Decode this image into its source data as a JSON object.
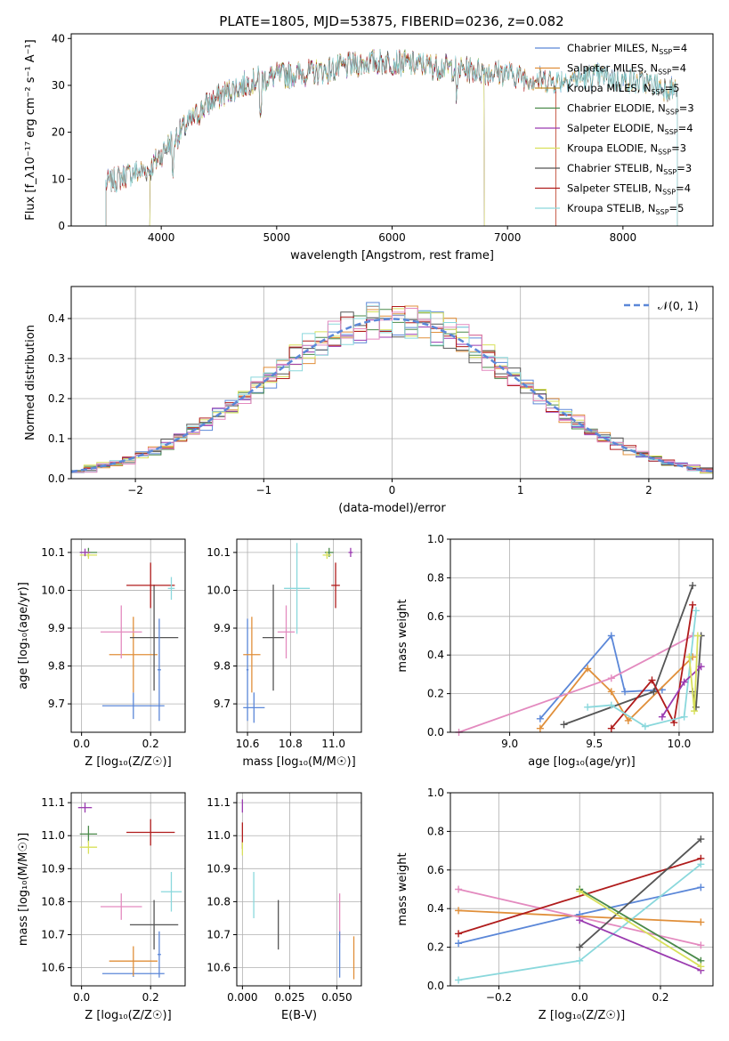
{
  "figure_title": "PLATE=1805, MJD=53875, FIBERID=0236, z=0.082",
  "colors": {
    "Chabrier MILES": "#5b87d8",
    "Salpeter MILES": "#e08f3a",
    "Kroupa MILES": "#c28f2c",
    "Chabrier ELODIE": "#4a8a4a",
    "Salpeter ELODIE": "#9a3bb0",
    "Kroupa ELODIE": "#d8e05a",
    "Chabrier STELIB": "#555555",
    "Salpeter STELIB": "#b01c1c",
    "Kroupa STELIB": "#8ad8dc",
    "pink": "#e38abf",
    "normal": "#5b87d8"
  },
  "chart_data": [
    {
      "type": "line",
      "id": "spectrum",
      "title": "PLATE=1805, MJD=53875, FIBERID=0236, z=0.082",
      "xlabel": "wavelength [Angstrom, rest frame]",
      "ylabel": "Flux [f_λ10⁻¹⁷ erg cm⁻² s⁻¹ A⁻¹]",
      "xlim": [
        3220,
        8780
      ],
      "ylim": [
        0,
        41
      ],
      "xticks": [
        "4000",
        "5000",
        "6000",
        "7000",
        "8000"
      ],
      "yticks": [
        "0",
        "10",
        "20",
        "30",
        "40"
      ],
      "legend_position": "top-right",
      "continuum": [
        [
          3520,
          9
        ],
        [
          3700,
          11
        ],
        [
          3900,
          12
        ],
        [
          4050,
          17
        ],
        [
          4200,
          21
        ],
        [
          4400,
          26
        ],
        [
          4600,
          29
        ],
        [
          4800,
          31
        ],
        [
          5000,
          32
        ],
        [
          5200,
          32.5
        ],
        [
          5400,
          33
        ],
        [
          5600,
          34
        ],
        [
          5800,
          35
        ],
        [
          6000,
          35
        ],
        [
          6200,
          34.5
        ],
        [
          6400,
          34
        ],
        [
          6600,
          33.5
        ],
        [
          6800,
          33
        ],
        [
          7000,
          32.5
        ],
        [
          7200,
          31.5
        ],
        [
          7400,
          31
        ],
        [
          7600,
          31.5
        ],
        [
          7800,
          32
        ],
        [
          8000,
          31
        ],
        [
          8200,
          30.5
        ],
        [
          8470,
          29
        ]
      ],
      "series": [
        {
          "name": "Chabrier MILES, N",
          "sub": "SSP",
          "suffix": "=4",
          "start": 3520,
          "end": 8470
        },
        {
          "name": "Salpeter MILES, N",
          "sub": "SSP",
          "suffix": "=4",
          "start": 3520,
          "end": 7420
        },
        {
          "name": "Kroupa MILES, N",
          "sub": "SSP",
          "suffix": "=5",
          "start": 3520,
          "end": 8470
        },
        {
          "name": "Chabrier ELODIE, N",
          "sub": "SSP",
          "suffix": "=3",
          "start": 3900,
          "end": 6800
        },
        {
          "name": "Salpeter ELODIE, N",
          "sub": "SSP",
          "suffix": "=4",
          "start": 3900,
          "end": 6800
        },
        {
          "name": "Kroupa ELODIE, N",
          "sub": "SSP",
          "suffix": "=3",
          "start": 3900,
          "end": 6800
        },
        {
          "name": "Chabrier STELIB, N",
          "sub": "SSP",
          "suffix": "=3",
          "start": 3520,
          "end": 8470
        },
        {
          "name": "Salpeter STELIB, N",
          "sub": "SSP",
          "suffix": "=4",
          "start": 3520,
          "end": 7420
        },
        {
          "name": "Kroupa STELIB, N",
          "sub": "SSP",
          "suffix": "=5",
          "start": 3520,
          "end": 8470
        }
      ]
    },
    {
      "type": "line",
      "id": "residuals",
      "xlabel": "(data-model)/error",
      "ylabel": "Normed distribution",
      "xlim": [
        -2.5,
        2.5
      ],
      "ylim": [
        0,
        0.48
      ],
      "xticks": [
        "−2",
        "−1",
        "0",
        "1",
        "2"
      ],
      "yticks": [
        "0.0",
        "0.1",
        "0.2",
        "0.3",
        "0.4"
      ],
      "grid": true,
      "legend_position": "top-right",
      "legend_label": "𝒩(0, 1)",
      "bin_width": 0.1,
      "n_histograms": 9
    },
    {
      "type": "scatter",
      "id": "age_vs_Z",
      "xlabel": "Z [log₁₀(Z/Z☉)]",
      "ylabel": "age  [log₁₀(age/yr)]",
      "xlim": [
        -0.03,
        0.3
      ],
      "ylim": [
        9.625,
        10.135
      ],
      "xticks": [
        "0.0",
        "0.2"
      ],
      "yticks": [
        "9.7",
        "9.8",
        "9.9",
        "10.0",
        "10.1"
      ],
      "grid": true,
      "points": [
        {
          "x": 0.15,
          "y": 9.695,
          "xerr": 0.09,
          "yerr": 0.035,
          "color": "#5b87d8"
        },
        {
          "x": 0.15,
          "y": 9.83,
          "xerr": 0.07,
          "yerr": 0.1,
          "color": "#e08f3a"
        },
        {
          "x": 0.115,
          "y": 9.89,
          "xerr": 0.06,
          "yerr": 0.07,
          "color": "#e38abf"
        },
        {
          "x": 0.21,
          "y": 9.875,
          "xerr": 0.07,
          "yerr": 0.14,
          "color": "#555555"
        },
        {
          "x": 0.2,
          "y": 10.013,
          "xerr": 0.07,
          "yerr": 0.06,
          "color": "#b01c1c"
        },
        {
          "x": 0.26,
          "y": 10.005,
          "xerr": 0.01,
          "yerr": 0.03,
          "color": "#8ad8dc"
        },
        {
          "x": 0.225,
          "y": 9.79,
          "xerr": 0.005,
          "yerr": 0.135,
          "color": "#5b87d8"
        },
        {
          "x": 0.02,
          "y": 10.1,
          "xerr": 0.025,
          "yerr": 0.012,
          "color": "#4a8a4a"
        },
        {
          "x": 0.02,
          "y": 10.093,
          "xerr": 0.025,
          "yerr": 0.01,
          "color": "#d8e05a"
        },
        {
          "x": 0.01,
          "y": 10.1,
          "xerr": 0.015,
          "yerr": 0.01,
          "color": "#9a3bb0"
        }
      ]
    },
    {
      "type": "scatter",
      "id": "age_vs_mass",
      "xlabel": "mass [log₁₀(M/M☉)]",
      "ylabel": "",
      "xlim": [
        10.55,
        11.13
      ],
      "ylim": [
        9.625,
        10.135
      ],
      "xticks": [
        "10.6",
        "10.8",
        "11.0"
      ],
      "yticks": [
        "9.7",
        "9.8",
        "9.9",
        "10.0",
        "10.1"
      ],
      "grid": true,
      "points": [
        {
          "x": 10.63,
          "y": 9.69,
          "xerr": 0.05,
          "yerr": 0.04,
          "color": "#5b87d8"
        },
        {
          "x": 10.6,
          "y": 9.79,
          "xerr": 0.005,
          "yerr": 0.135,
          "color": "#5b87d8"
        },
        {
          "x": 10.62,
          "y": 9.83,
          "xerr": 0.04,
          "yerr": 0.1,
          "color": "#e08f3a"
        },
        {
          "x": 10.78,
          "y": 9.89,
          "xerr": 0.04,
          "yerr": 0.07,
          "color": "#e38abf"
        },
        {
          "x": 10.72,
          "y": 9.875,
          "xerr": 0.05,
          "yerr": 0.14,
          "color": "#555555"
        },
        {
          "x": 10.83,
          "y": 10.005,
          "xerr": 0.06,
          "yerr": 0.12,
          "color": "#8ad8dc"
        },
        {
          "x": 11.01,
          "y": 10.013,
          "xerr": 0.02,
          "yerr": 0.06,
          "color": "#b01c1c"
        },
        {
          "x": 10.98,
          "y": 10.1,
          "xerr": 0.02,
          "yerr": 0.012,
          "color": "#4a8a4a"
        },
        {
          "x": 10.97,
          "y": 10.093,
          "xerr": 0.02,
          "yerr": 0.01,
          "color": "#d8e05a"
        },
        {
          "x": 11.08,
          "y": 10.1,
          "xerr": 0.01,
          "yerr": 0.012,
          "color": "#9a3bb0"
        }
      ]
    },
    {
      "type": "line",
      "id": "massweight_vs_age",
      "xlabel": "age  [log₁₀(age/yr)]",
      "ylabel": "mass weight",
      "xlim": [
        8.65,
        10.2
      ],
      "ylim": [
        0,
        1
      ],
      "xticks": [
        "9.0",
        "9.5",
        "10.0"
      ],
      "yticks": [
        "0.0",
        "0.2",
        "0.4",
        "0.6",
        "0.8",
        "1.0"
      ],
      "grid": true,
      "series": [
        {
          "color": "#5b87d8",
          "x": [
            9.18,
            9.6,
            9.68,
            9.9
          ],
          "y": [
            0.07,
            0.5,
            0.21,
            0.22
          ]
        },
        {
          "color": "#e08f3a",
          "x": [
            9.18,
            9.46,
            9.6,
            9.7,
            10.08
          ],
          "y": [
            0.02,
            0.33,
            0.21,
            0.06,
            0.39
          ]
        },
        {
          "color": "#e38abf",
          "x": [
            8.7,
            9.6,
            10.08
          ],
          "y": [
            0.0,
            0.28,
            0.5
          ]
        },
        {
          "color": "#555555",
          "x": [
            9.32,
            9.85,
            10.08
          ],
          "y": [
            0.04,
            0.21,
            0.76
          ]
        },
        {
          "color": "#555555",
          "x": [
            10.08,
            10.1,
            10.13
          ],
          "y": [
            0.21,
            0.13,
            0.5
          ]
        },
        {
          "color": "#b01c1c",
          "x": [
            9.6,
            9.84,
            9.97,
            10.08
          ],
          "y": [
            0.02,
            0.27,
            0.05,
            0.66
          ]
        },
        {
          "color": "#8ad8dc",
          "x": [
            9.46,
            9.6,
            9.8,
            10.03,
            10.1
          ],
          "y": [
            0.13,
            0.14,
            0.03,
            0.08,
            0.63
          ]
        },
        {
          "color": "#9a3bb0",
          "x": [
            9.9,
            10.03,
            10.13
          ],
          "y": [
            0.08,
            0.26,
            0.34
          ]
        },
        {
          "color": "#d8e05a",
          "x": [
            10.06,
            10.09,
            10.11
          ],
          "y": [
            0.39,
            0.11,
            0.5
          ]
        }
      ]
    },
    {
      "type": "scatter",
      "id": "mass_vs_Z",
      "xlabel": "Z [log₁₀(Z/Z☉)]",
      "ylabel": "mass [log₁₀(M/M☉)]",
      "xlim": [
        -0.03,
        0.3
      ],
      "ylim": [
        10.545,
        11.13
      ],
      "xticks": [
        "0.0",
        "0.2"
      ],
      "yticks": [
        "10.6",
        "10.7",
        "10.8",
        "10.9",
        "11.0",
        "11.1"
      ],
      "grid": true,
      "points": [
        {
          "x": 0.15,
          "y": 10.582,
          "xerr": 0.09,
          "yerr": 0.01,
          "color": "#5b87d8"
        },
        {
          "x": 0.225,
          "y": 10.64,
          "xerr": 0.005,
          "yerr": 0.07,
          "color": "#5b87d8"
        },
        {
          "x": 0.15,
          "y": 10.62,
          "xerr": 0.07,
          "yerr": 0.045,
          "color": "#e08f3a"
        },
        {
          "x": 0.115,
          "y": 10.785,
          "xerr": 0.06,
          "yerr": 0.04,
          "color": "#e38abf"
        },
        {
          "x": 0.21,
          "y": 10.73,
          "xerr": 0.07,
          "yerr": 0.075,
          "color": "#555555"
        },
        {
          "x": 0.2,
          "y": 11.01,
          "xerr": 0.07,
          "yerr": 0.04,
          "color": "#b01c1c"
        },
        {
          "x": 0.26,
          "y": 10.83,
          "xerr": 0.03,
          "yerr": 0.06,
          "color": "#8ad8dc"
        },
        {
          "x": 0.02,
          "y": 11.005,
          "xerr": 0.025,
          "yerr": 0.025,
          "color": "#4a8a4a"
        },
        {
          "x": 0.02,
          "y": 10.965,
          "xerr": 0.025,
          "yerr": 0.02,
          "color": "#d8e05a"
        },
        {
          "x": 0.01,
          "y": 11.085,
          "xerr": 0.02,
          "yerr": 0.015,
          "color": "#9a3bb0"
        }
      ]
    },
    {
      "type": "scatter",
      "id": "mass_vs_ebv",
      "xlabel": "E(B-V)",
      "ylabel": "",
      "xlim": [
        -0.003,
        0.063
      ],
      "ylim": [
        10.545,
        11.13
      ],
      "xticks": [
        "0.000",
        "0.025",
        "0.050"
      ],
      "yticks": [
        "10.6",
        "10.7",
        "10.8",
        "10.9",
        "11.0",
        "11.1"
      ],
      "grid": true,
      "points": [
        {
          "x": 0.0,
          "y": 11.09,
          "yerr": 0.02,
          "color": "#9a3bb0"
        },
        {
          "x": 0.0,
          "y": 11.0,
          "yerr": 0.04,
          "color": "#b01c1c"
        },
        {
          "x": 0.0,
          "y": 10.96,
          "yerr": 0.02,
          "color": "#d8e05a"
        },
        {
          "x": 0.006,
          "y": 10.82,
          "yerr": 0.07,
          "color": "#8ad8dc"
        },
        {
          "x": 0.019,
          "y": 10.73,
          "yerr": 0.075,
          "color": "#555555"
        },
        {
          "x": 0.0515,
          "y": 10.75,
          "yerr": 0.075,
          "color": "#e38abf"
        },
        {
          "x": 0.0515,
          "y": 10.64,
          "yerr": 0.07,
          "color": "#5b87d8"
        },
        {
          "x": 0.059,
          "y": 10.63,
          "yerr": 0.065,
          "color": "#e08f3a"
        }
      ]
    },
    {
      "type": "line",
      "id": "massweight_vs_Z",
      "xlabel": "Z [log₁₀(Z/Z☉)]",
      "ylabel": "mass weight",
      "xlim": [
        -0.32,
        0.33
      ],
      "ylim": [
        0,
        1
      ],
      "xticks": [
        "−0.2",
        "0.0",
        "0.2"
      ],
      "yticks": [
        "0.0",
        "0.2",
        "0.4",
        "0.6",
        "0.8",
        "1.0"
      ],
      "grid": true,
      "series": [
        {
          "color": "#5b87d8",
          "x": [
            -0.3,
            0.0,
            0.3
          ],
          "y": [
            0.22,
            0.37,
            0.51
          ]
        },
        {
          "color": "#e08f3a",
          "x": [
            -0.3,
            0.3
          ],
          "y": [
            0.39,
            0.33
          ]
        },
        {
          "color": "#e38abf",
          "x": [
            -0.3,
            0.3
          ],
          "y": [
            0.5,
            0.21
          ]
        },
        {
          "color": "#b01c1c",
          "x": [
            -0.3,
            0.3
          ],
          "y": [
            0.27,
            0.66
          ]
        },
        {
          "color": "#8ad8dc",
          "x": [
            -0.3,
            0.0,
            0.3
          ],
          "y": [
            0.03,
            0.13,
            0.63
          ]
        },
        {
          "color": "#555555",
          "x": [
            0.0,
            0.3
          ],
          "y": [
            0.2,
            0.76
          ]
        },
        {
          "color": "#9a3bb0",
          "x": [
            0.0,
            0.3
          ],
          "y": [
            0.34,
            0.08
          ]
        },
        {
          "color": "#4a8a4a",
          "x": [
            0.0,
            0.3
          ],
          "y": [
            0.5,
            0.13
          ]
        },
        {
          "color": "#d8e05a",
          "x": [
            0.0,
            0.3
          ],
          "y": [
            0.49,
            0.1
          ]
        }
      ]
    }
  ]
}
